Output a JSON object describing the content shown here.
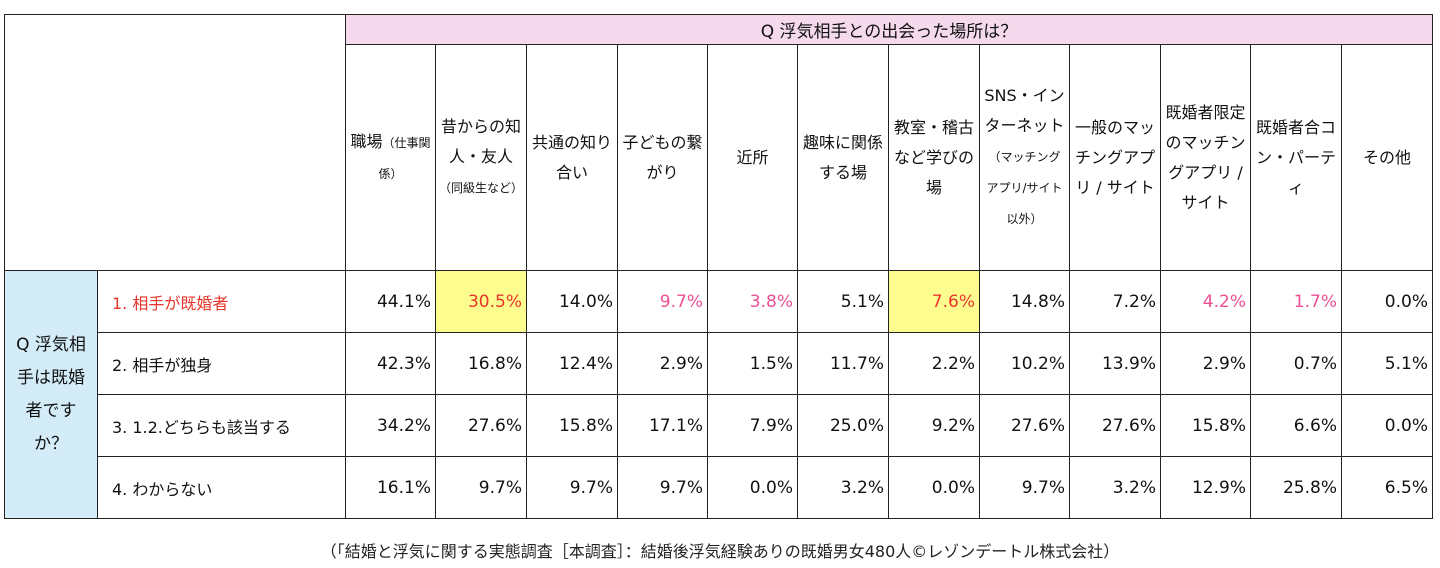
{
  "question_top": "Q 浮気相手との出会った場所は？",
  "question_side": "Q 浮気相手は既婚者ですか？",
  "columns": [
    {
      "main": "職場",
      "sub": "（仕事関係）"
    },
    {
      "main": "昔からの知人・友人",
      "sub": "（同級生など）"
    },
    {
      "main": "共通の知り合い",
      "sub": ""
    },
    {
      "main": "子どもの繋がり",
      "sub": ""
    },
    {
      "main": "近所",
      "sub": ""
    },
    {
      "main": "趣味に関係する場",
      "sub": ""
    },
    {
      "main": "教室・稽古など学びの場",
      "sub": ""
    },
    {
      "main": "SNS・インターネット",
      "sub": "（マッチングアプリ/サイト以外）"
    },
    {
      "main": "一般のマッチングアプリ / サイト",
      "sub": ""
    },
    {
      "main": "既婚者限定のマッチングアプリ / サイト",
      "sub": ""
    },
    {
      "main": "既婚者合コン・パーティ",
      "sub": ""
    },
    {
      "main": "その他",
      "sub": ""
    }
  ],
  "rows": [
    {
      "label": "1. 相手が既婚者",
      "values": [
        "44.1%",
        "30.5%",
        "14.0%",
        "9.7%",
        "3.8%",
        "5.1%",
        "7.6%",
        "14.8%",
        "7.2%",
        "4.2%",
        "1.7%",
        "0.0%"
      ]
    },
    {
      "label": "2. 相手が独身",
      "values": [
        "42.3%",
        "16.8%",
        "12.4%",
        "2.9%",
        "1.5%",
        "11.7%",
        "2.2%",
        "10.2%",
        "13.9%",
        "2.9%",
        "0.7%",
        "5.1%"
      ]
    },
    {
      "label": "3. 1.2.どちらも該当する",
      "values": [
        "34.2%",
        "27.6%",
        "15.8%",
        "17.1%",
        "7.9%",
        "25.0%",
        "9.2%",
        "27.6%",
        "27.6%",
        "15.8%",
        "6.6%",
        "0.0%"
      ]
    },
    {
      "label": "4. わからない",
      "values": [
        "16.1%",
        "9.7%",
        "9.7%",
        "9.7%",
        "0.0%",
        "3.2%",
        "0.0%",
        "9.7%",
        "3.2%",
        "12.9%",
        "25.8%",
        "6.5%"
      ]
    }
  ],
  "row1_styles": [
    "",
    "red hl",
    "",
    "pink",
    "pink",
    "",
    "red hl",
    "",
    "",
    "pink",
    "pink",
    ""
  ],
  "colors": {
    "title_bg": "#f5d9ec",
    "side_bg": "#d3ecf8",
    "highlight": "#fdfc8f",
    "red": "#e8352b",
    "pink": "#ec4f94"
  },
  "caption": "（「結婚と浮気に関する実態調査［本調査］：結婚後浮気経験ありの既婚男女480人©レゾンデートル株式会社）"
}
